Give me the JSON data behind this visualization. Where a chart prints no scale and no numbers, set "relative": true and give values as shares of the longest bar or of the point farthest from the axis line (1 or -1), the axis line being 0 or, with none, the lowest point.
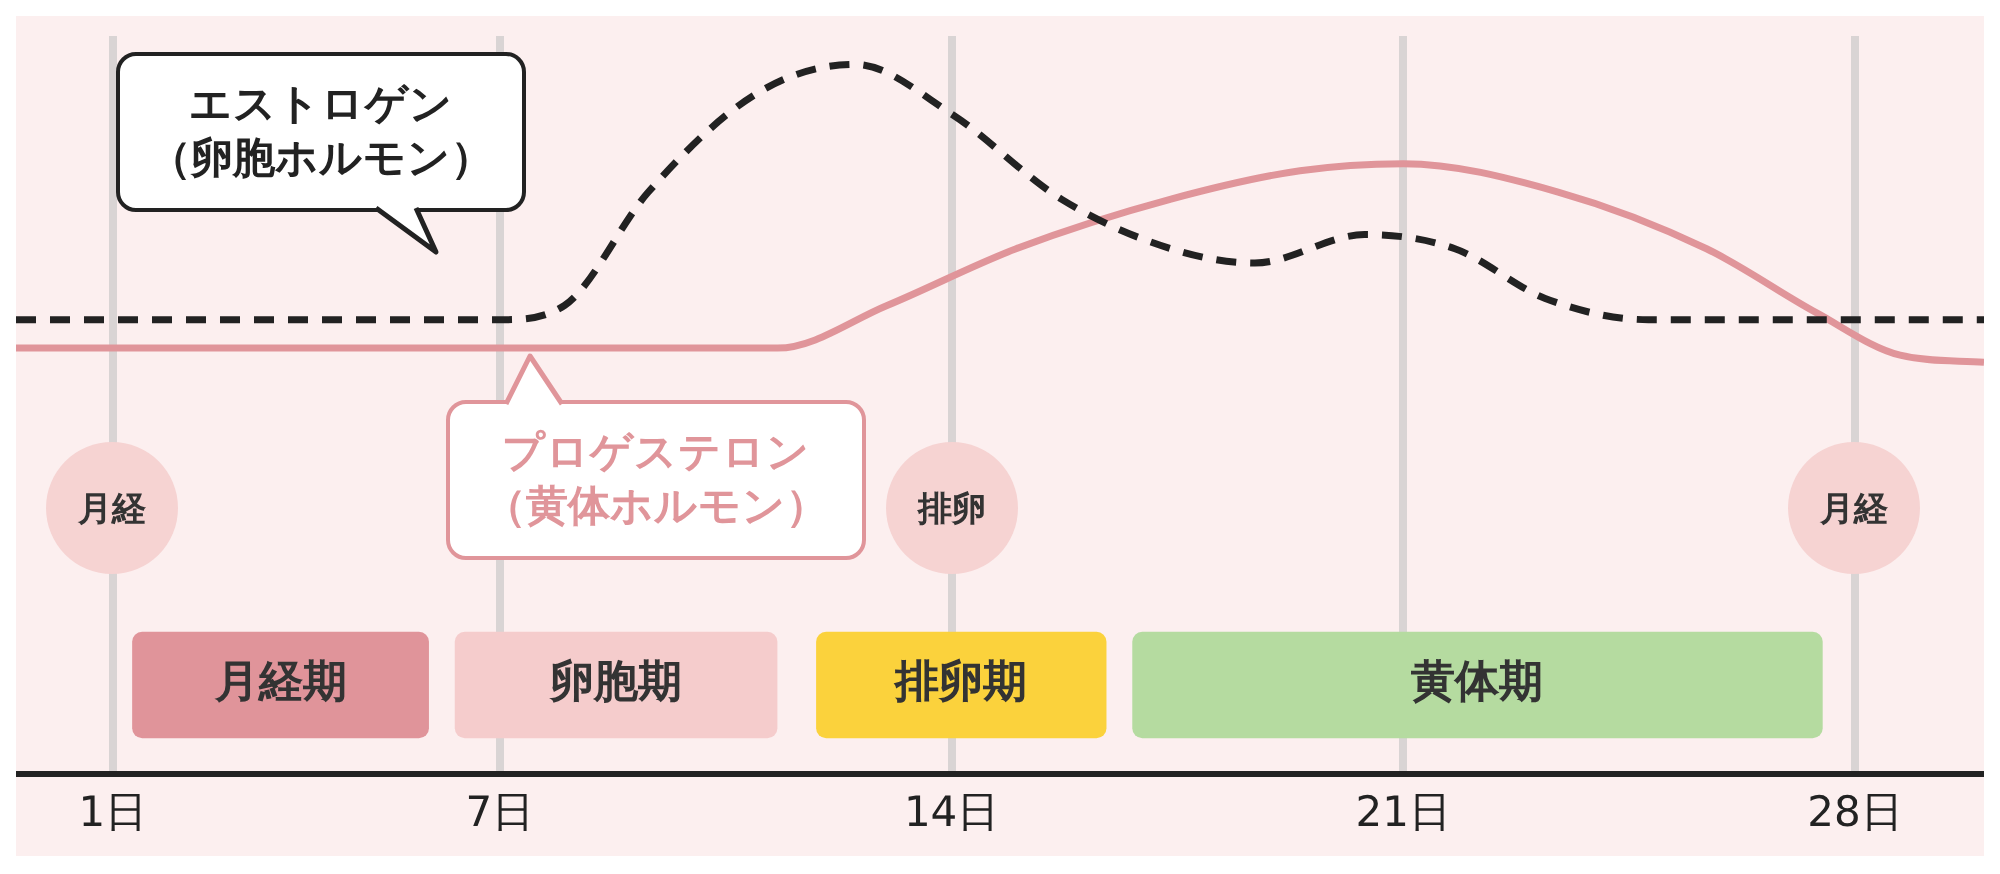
{
  "chart_data": {
    "type": "line",
    "relative": true,
    "marker": "none",
    "grid": "x",
    "legend": "left",
    "xlim": [
      -0.5,
      30
    ],
    "xticks": [
      {
        "value": 1,
        "label": "1日"
      },
      {
        "value": 7,
        "label": "7日"
      },
      {
        "value": 14,
        "label": "14日"
      },
      {
        "value": 21,
        "label": "21日"
      },
      {
        "value": 28,
        "label": "28日"
      }
    ],
    "series": [
      {
        "name": "エストロゲン（卵胞ホルモン）",
        "color": "#222222",
        "line_style": "dashed",
        "x": [
          -0.5,
          7,
          8,
          9.3,
          11,
          12.5,
          14,
          15.7,
          17.4,
          18.7,
          20.4,
          21.8,
          23.2,
          24.8,
          30
        ],
        "values": [
          0.64,
          0.64,
          0.66,
          0.82,
          0.96,
          1,
          0.93,
          0.81,
          0.74,
          0.72,
          0.76,
          0.74,
          0.67,
          0.64,
          0.64
        ]
      },
      {
        "name": "プロゲステロン（黄体ホルモン）",
        "color": "#e0959a",
        "line_style": "solid",
        "x": [
          -0.5,
          11.3,
          13,
          15,
          17.4,
          19.4,
          21,
          23.4,
          25.7,
          27.4,
          28.7,
          30
        ],
        "values": [
          0.6,
          0.6,
          0.66,
          0.74,
          0.81,
          0.85,
          0.86,
          0.82,
          0.74,
          0.65,
          0.59,
          0.58
        ]
      }
    ],
    "bands": [
      {
        "axis": "x",
        "from": 1.3,
        "to": 5.9,
        "label": "月経期",
        "color": "#e0949a"
      },
      {
        "axis": "x",
        "from": 6.3,
        "to": 11.3,
        "label": "卵胞期",
        "color": "#f5cccc"
      },
      {
        "axis": "x",
        "from": 11.9,
        "to": 16.4,
        "label": "排卵期",
        "color": "#fbd23c"
      },
      {
        "axis": "x",
        "from": 16.8,
        "to": 27.5,
        "label": "黄体期",
        "color": "#b5dba0"
      }
    ],
    "annotations": [
      "月経",
      "排卵",
      "月経"
    ]
  }
}
